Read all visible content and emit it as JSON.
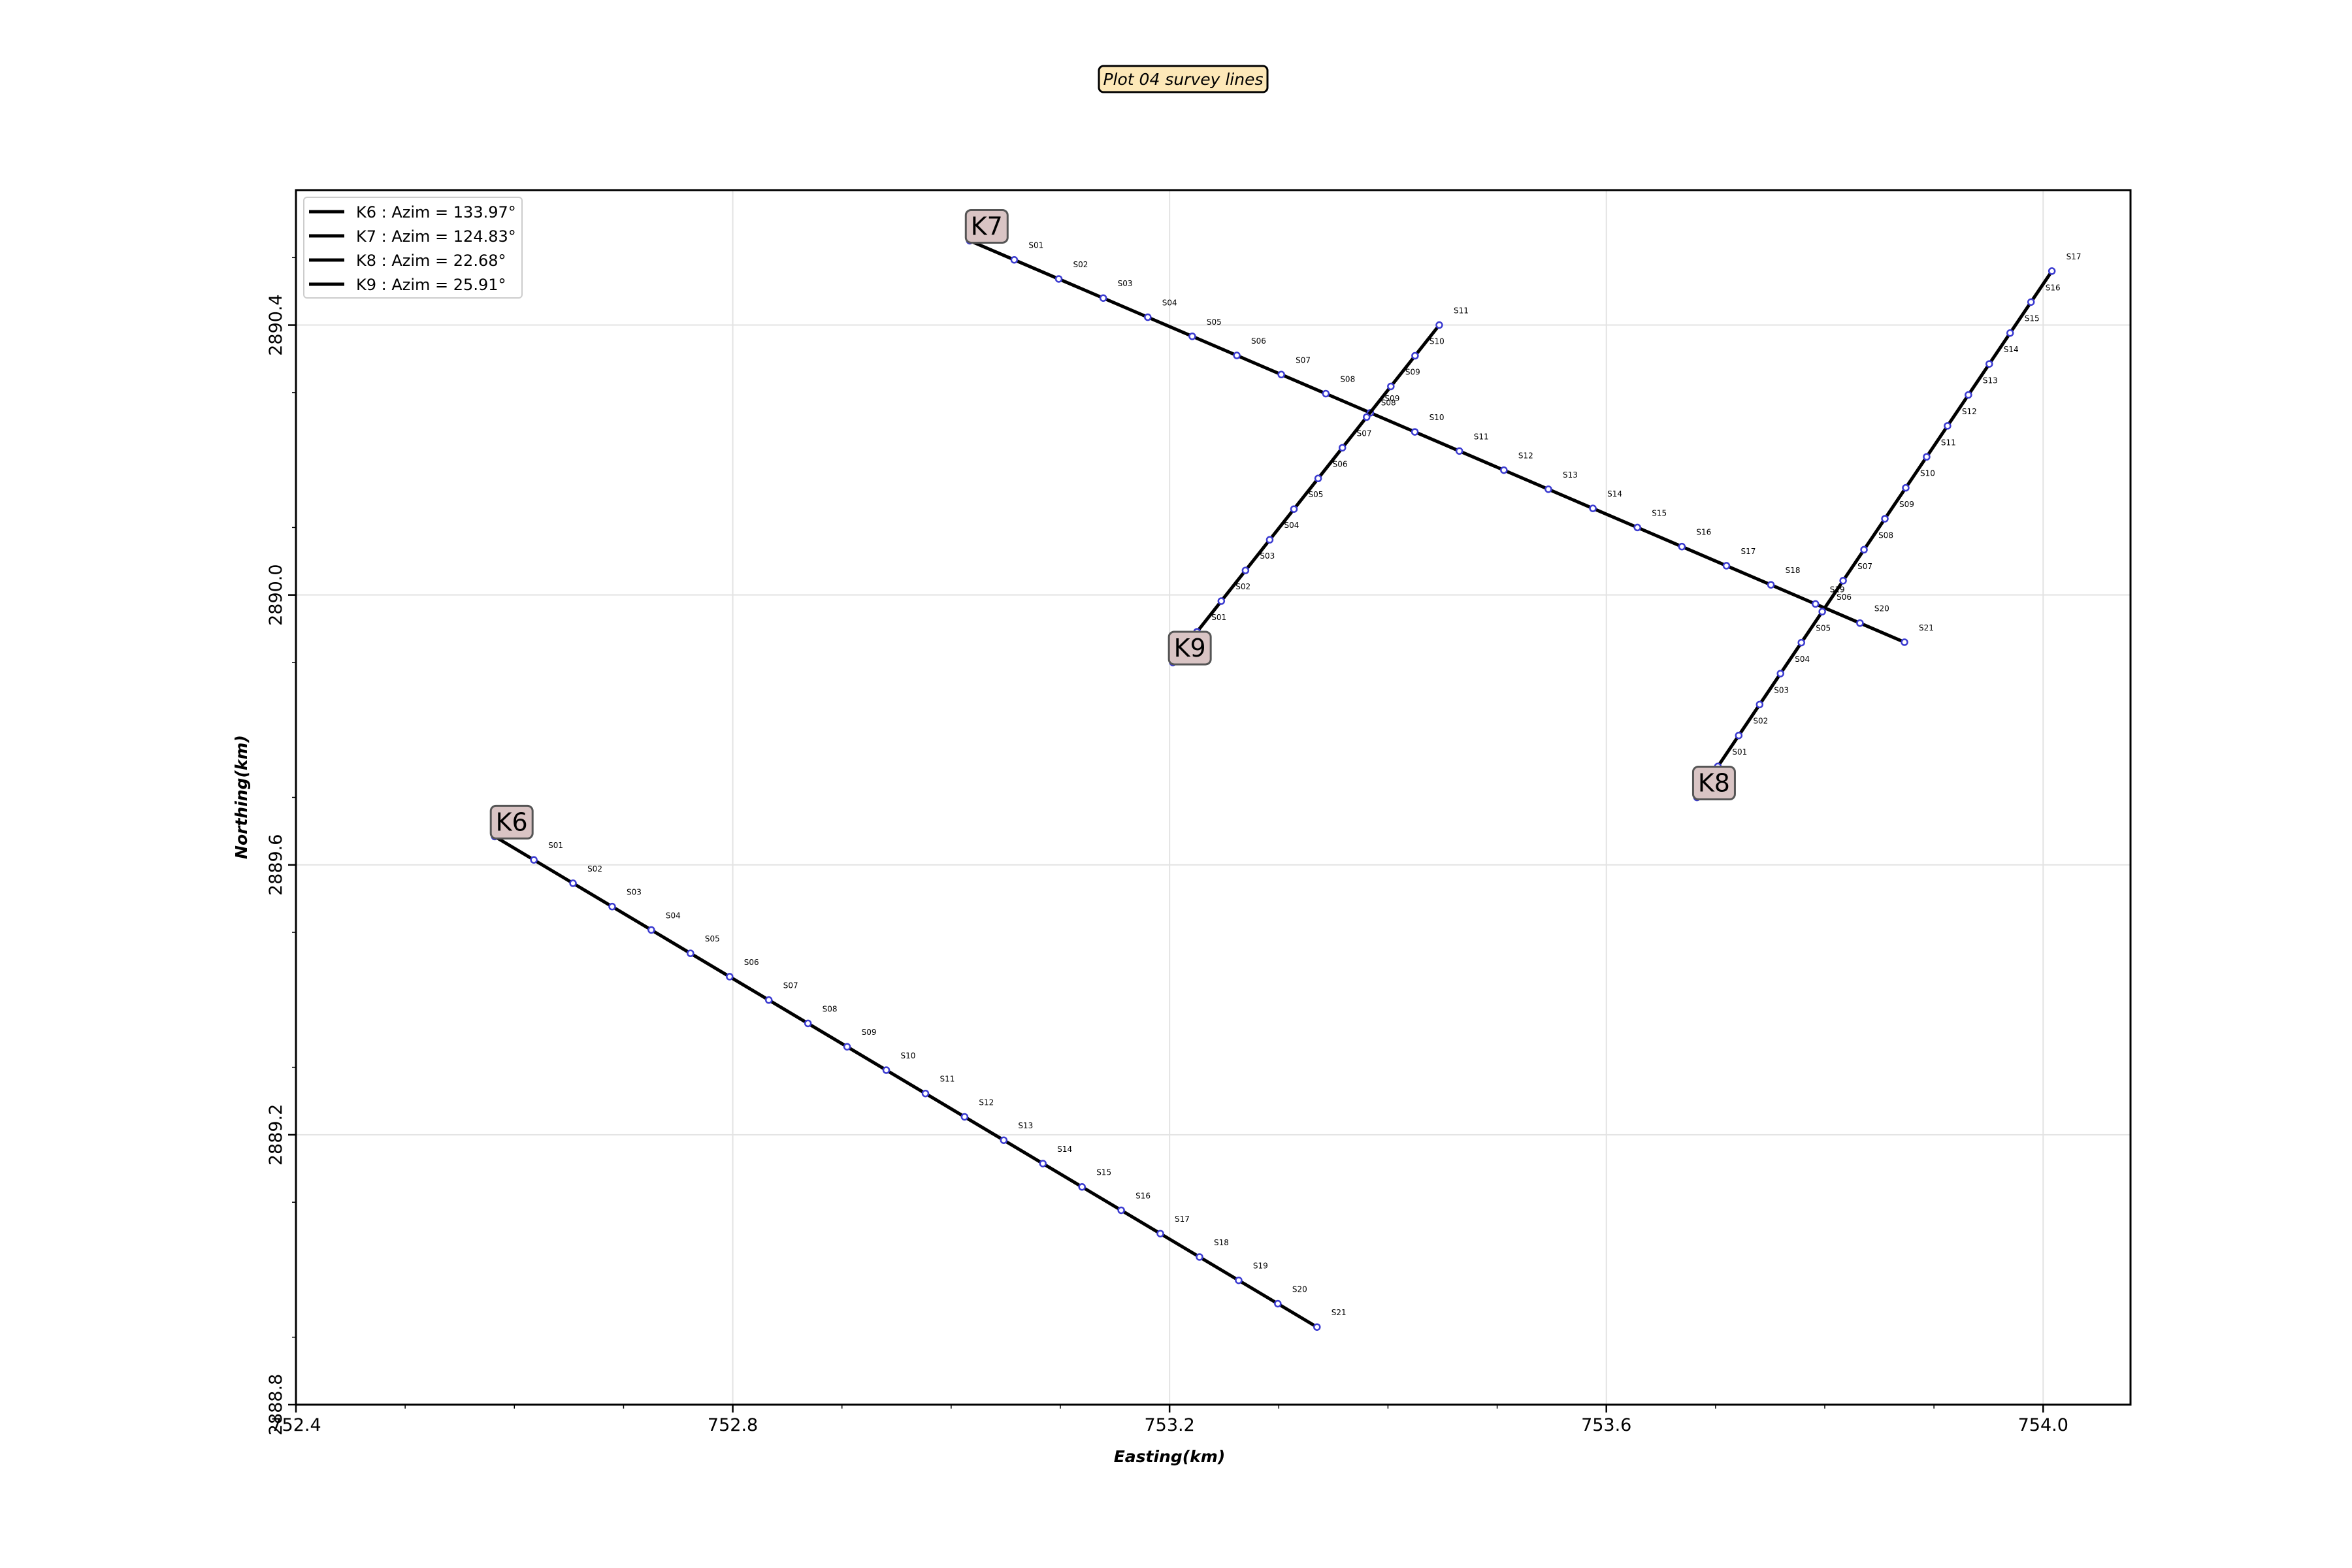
{
  "chart_data": {
    "type": "line",
    "title": "Plot 04 survey lines",
    "xlabel": "Easting(km)",
    "ylabel": "Northing(km)",
    "xlim": [
      752.4,
      754.08
    ],
    "ylim": [
      2888.8,
      2890.6
    ],
    "xticks": [
      752.4,
      752.8,
      753.2,
      753.6,
      754.0
    ],
    "xtick_labels": [
      "752.4",
      "752.8",
      "753.2",
      "753.6",
      "754.0"
    ],
    "yticks": [
      2888.8,
      2889.2,
      2889.6,
      2890.0,
      2890.4
    ],
    "ytick_labels": [
      "2888.8",
      "2889.2",
      "2889.6",
      "2890.0",
      "2890.4"
    ],
    "grid": true,
    "legend_position": "top-left",
    "colors": {
      "line": "#000000",
      "station_marker": "#3a3ad0",
      "label_box": "#d9c4c4",
      "title_box": "#fde8b8"
    },
    "series": [
      {
        "name": "K6",
        "legend": "K6 : Azim = 133.97°",
        "start": [
          752.582,
          2889.642
        ],
        "end": [
          753.335,
          2888.915
        ],
        "stations": [
          "S01",
          "S02",
          "S03",
          "S04",
          "S05",
          "S06",
          "S07",
          "S08",
          "S09",
          "S10",
          "S11",
          "S12",
          "S13",
          "S14",
          "S15",
          "S16",
          "S17",
          "S18",
          "S19",
          "S20",
          "S21"
        ]
      },
      {
        "name": "K7",
        "legend": "K7 : Azim = 124.83°",
        "start": [
          753.017,
          2890.525
        ],
        "end": [
          753.873,
          2889.93
        ],
        "stations": [
          "S01",
          "S02",
          "S03",
          "S04",
          "S05",
          "S06",
          "S07",
          "S08",
          "S09",
          "S10",
          "S11",
          "S12",
          "S13",
          "S14",
          "S15",
          "S16",
          "S17",
          "S18",
          "S19",
          "S20",
          "S21"
        ]
      },
      {
        "name": "K8",
        "legend": "K8 : Azim = 22.68°",
        "start": [
          753.683,
          2889.7
        ],
        "end": [
          754.008,
          2890.48
        ],
        "stations": [
          "S01",
          "S02",
          "S03",
          "S04",
          "S05",
          "S06",
          "S07",
          "S08",
          "S09",
          "S10",
          "S11",
          "S12",
          "S13",
          "S14",
          "S15",
          "S16",
          "S17"
        ]
      },
      {
        "name": "K9",
        "legend": "K9 : Azim = 25.91°",
        "start": [
          753.203,
          2889.9
        ],
        "end": [
          753.447,
          2890.4
        ],
        "stations": [
          "S01",
          "S02",
          "S03",
          "S04",
          "S05",
          "S06",
          "S07",
          "S08",
          "S09",
          "S10",
          "S11"
        ]
      }
    ]
  }
}
